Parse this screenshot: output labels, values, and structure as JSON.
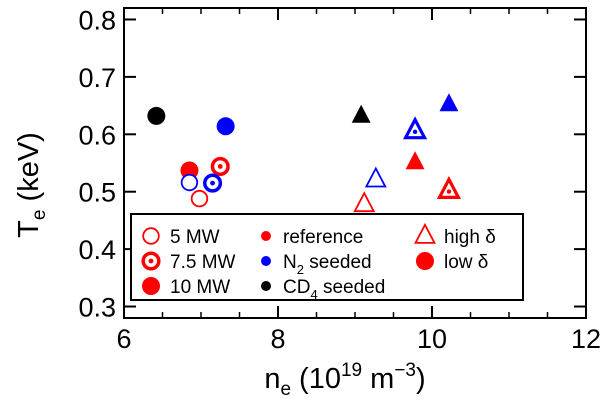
{
  "chart_data": {
    "type": "scatter",
    "title": "",
    "xlabel": "n_e (10^19 m^-3)",
    "ylabel": "T_e (keV)",
    "xlim": [
      6,
      12
    ],
    "ylim": [
      0.28,
      0.82
    ],
    "x_ticks": [
      6,
      8,
      10,
      12
    ],
    "y_ticks": [
      0.3,
      0.4,
      0.5,
      0.6,
      0.7,
      0.8
    ],
    "grid": false,
    "legend_placement": "bottom-left",
    "xlabel_parts": {
      "base": "n",
      "sub": "e",
      "pre": "(10",
      "sup1": "19",
      "mid": " m",
      "sup2": "−3",
      "post": ")"
    },
    "ylabel_parts": {
      "base": "T",
      "sub": "e",
      "rest": " (keV)"
    },
    "colors": {
      "reference": "#ff0000",
      "n2_seeded": "#0000ff",
      "cd4_seeded": "#000000"
    },
    "points": [
      {
        "x": 6.42,
        "y": 0.632,
        "color": "#000000",
        "marker": "circle",
        "style": "filled"
      },
      {
        "x": 6.85,
        "y": 0.537,
        "color": "#ff0000",
        "marker": "circle",
        "style": "filled"
      },
      {
        "x": 7.25,
        "y": 0.544,
        "color": "#ff0000",
        "marker": "circle",
        "style": "dotted"
      },
      {
        "x": 6.85,
        "y": 0.516,
        "color": "#0000ff",
        "marker": "circle",
        "style": "open"
      },
      {
        "x": 6.98,
        "y": 0.488,
        "color": "#ff0000",
        "marker": "circle",
        "style": "open"
      },
      {
        "x": 7.15,
        "y": 0.515,
        "color": "#0000ff",
        "marker": "circle",
        "style": "dotted"
      },
      {
        "x": 7.32,
        "y": 0.614,
        "color": "#0000ff",
        "marker": "circle",
        "style": "filled"
      },
      {
        "x": 9.08,
        "y": 0.632,
        "color": "#000000",
        "marker": "triangle",
        "style": "filled"
      },
      {
        "x": 9.12,
        "y": 0.478,
        "color": "#ff0000",
        "marker": "triangle",
        "style": "open"
      },
      {
        "x": 9.27,
        "y": 0.521,
        "color": "#0000ff",
        "marker": "triangle",
        "style": "open"
      },
      {
        "x": 9.78,
        "y": 0.606,
        "color": "#0000ff",
        "marker": "triangle",
        "style": "dotted"
      },
      {
        "x": 9.78,
        "y": 0.551,
        "color": "#ff0000",
        "marker": "triangle",
        "style": "filled"
      },
      {
        "x": 10.22,
        "y": 0.502,
        "color": "#ff0000",
        "marker": "triangle",
        "style": "dotted"
      },
      {
        "x": 10.22,
        "y": 0.652,
        "color": "#0000ff",
        "marker": "triangle",
        "style": "filled"
      }
    ],
    "legend": [
      {
        "label": "5 MW",
        "marker": "circle",
        "style": "open",
        "color": "#ff0000"
      },
      {
        "label": "7.5 MW",
        "marker": "circle",
        "style": "dotted",
        "color": "#ff0000"
      },
      {
        "label": "10 MW",
        "marker": "circle",
        "style": "filled",
        "color": "#ff0000"
      },
      {
        "label": "reference",
        "marker": "dot",
        "style": "filled",
        "color": "#ff0000"
      },
      {
        "label": "N2 seeded",
        "marker": "dot",
        "style": "filled",
        "color": "#0000ff",
        "parts": {
          "base": "N",
          "sub": "2",
          "rest": " seeded"
        }
      },
      {
        "label": "CD4 seeded",
        "marker": "dot",
        "style": "filled",
        "color": "#000000",
        "parts": {
          "base": "CD",
          "sub": "4",
          "rest": " seeded"
        }
      },
      {
        "label": "high δ",
        "marker": "triangle",
        "style": "open",
        "color": "#ff0000"
      },
      {
        "label": "low δ",
        "marker": "circle",
        "style": "filled",
        "color": "#ff0000"
      }
    ]
  }
}
